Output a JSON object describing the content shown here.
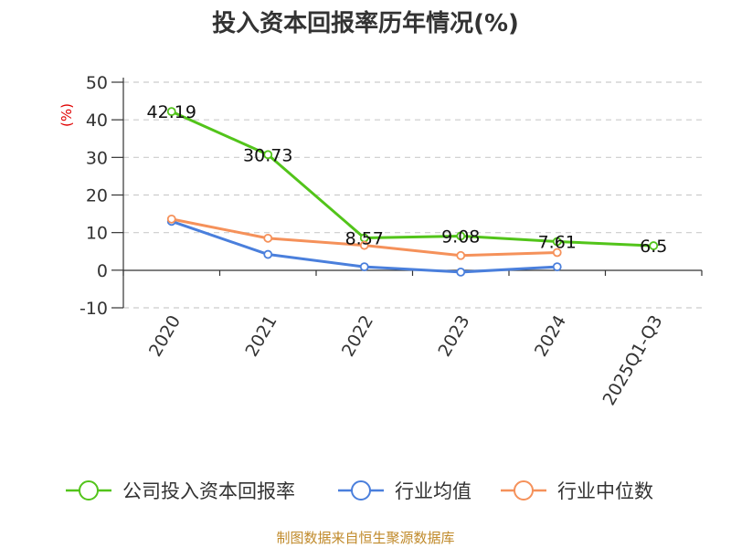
{
  "chart_data": {
    "type": "line",
    "title": "投入资本回报率历年情况(%)",
    "xlabel": "",
    "ylabel": "(%)",
    "categories": [
      "2020",
      "2021",
      "2022",
      "2023",
      "2024",
      "2025Q1-Q3"
    ],
    "ylim": [
      -10,
      50
    ],
    "yticks": [
      50,
      40,
      30,
      20,
      10,
      0,
      -10
    ],
    "grid": true,
    "legend_position": "bottom",
    "series": [
      {
        "name": "公司投入资本回报率",
        "color": "#52c41a",
        "values": [
          42.19,
          30.73,
          8.57,
          9.08,
          7.61,
          6.5
        ],
        "labels": [
          "42.19",
          "30.73",
          "8.57",
          "9.08",
          "7.61",
          "6.5"
        ]
      },
      {
        "name": "行业均值",
        "color": "#4a7fdc",
        "values": [
          13.0,
          4.2,
          0.9,
          -0.5,
          0.9,
          null
        ]
      },
      {
        "name": "行业中位数",
        "color": "#f5915a",
        "values": [
          13.6,
          8.5,
          6.6,
          3.9,
          4.7,
          null
        ]
      }
    ]
  },
  "source": "制图数据来自恒生聚源数据库"
}
